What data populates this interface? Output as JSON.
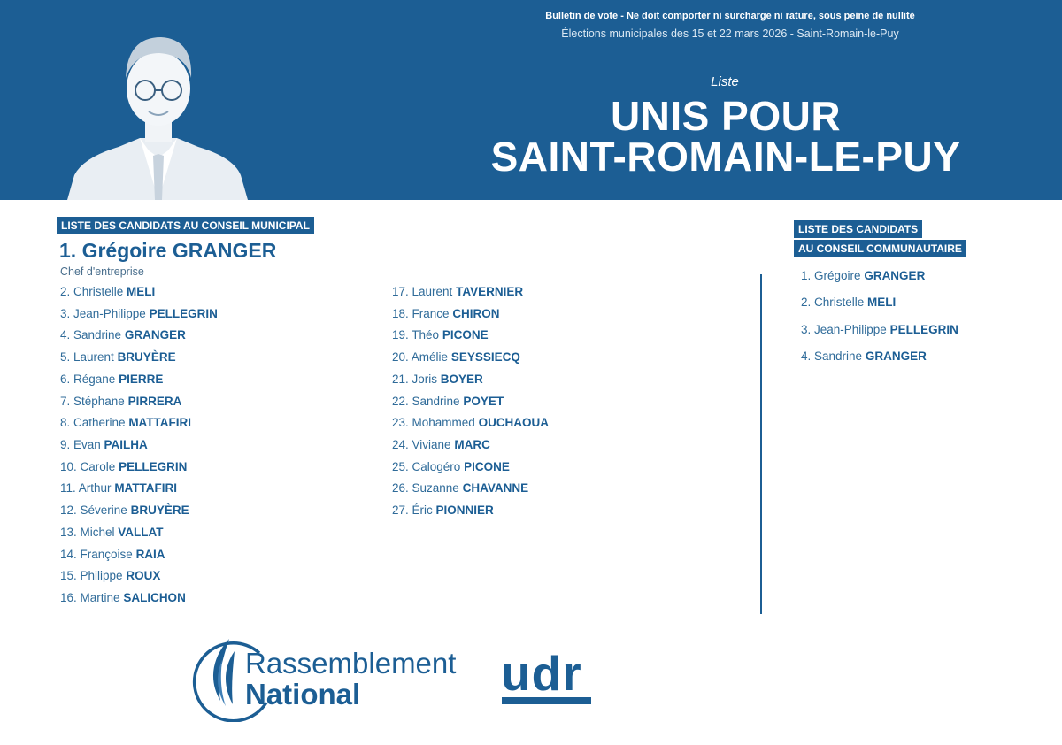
{
  "header": {
    "notice": "Bulletin de vote - Ne doit comporter ni surcharge ni rature, sous peine de nullité",
    "election": "Élections municipales des 15 et 22 mars 2026 - Saint-Romain-le-Puy",
    "liste_label": "Liste",
    "title_line1": "UNIS POUR",
    "title_line2": "SAINT-ROMAIN-LE-PUY"
  },
  "municipal": {
    "section_label": "LISTE DES CANDIDATS AU CONSEIL MUNICIPAL",
    "head": {
      "name": "1. Grégoire GRANGER",
      "role": "Chef d'entreprise"
    },
    "col1": [
      {
        "first": "2. Christelle",
        "last": "MELI"
      },
      {
        "first": "3. Jean-Philippe",
        "last": "PELLEGRIN"
      },
      {
        "first": "4. Sandrine",
        "last": "GRANGER"
      },
      {
        "first": "5. Laurent",
        "last": "BRUYÈRE"
      },
      {
        "first": "6. Régane",
        "last": "PIERRE"
      },
      {
        "first": "7. Stéphane",
        "last": "PIRRERA"
      },
      {
        "first": "8. Catherine",
        "last": "MATTAFIRI"
      },
      {
        "first": "9. Evan",
        "last": "PAILHA"
      },
      {
        "first": "10. Carole",
        "last": "PELLEGRIN"
      },
      {
        "first": "11. Arthur",
        "last": "MATTAFIRI"
      },
      {
        "first": "12. Séverine",
        "last": "BRUYÈRE"
      },
      {
        "first": "13. Michel",
        "last": "VALLAT"
      },
      {
        "first": "14. Françoise",
        "last": "RAIA"
      },
      {
        "first": "15. Philippe",
        "last": "ROUX"
      },
      {
        "first": "16. Martine",
        "last": "SALICHON"
      }
    ],
    "col2": [
      {
        "first": "17. Laurent",
        "last": "TAVERNIER"
      },
      {
        "first": "18. France",
        "last": "CHIRON"
      },
      {
        "first": "19. Théo",
        "last": "PICONE"
      },
      {
        "first": "20. Amélie",
        "last": "SEYSSIECQ"
      },
      {
        "first": "21. Joris",
        "last": "BOYER"
      },
      {
        "first": "22. Sandrine",
        "last": "POYET"
      },
      {
        "first": "23. Mohammed",
        "last": "OUCHAOUA"
      },
      {
        "first": "24. Viviane",
        "last": "MARC"
      },
      {
        "first": "25. Calogéro",
        "last": "PICONE"
      },
      {
        "first": "26. Suzanne",
        "last": "CHAVANNE"
      },
      {
        "first": "27. Éric",
        "last": "PIONNIER"
      }
    ]
  },
  "communautaire": {
    "section_label_line1": "LISTE DES CANDIDATS",
    "section_label_line2": "AU CONSEIL COMMUNAUTAIRE",
    "items": [
      {
        "first": "1. Grégoire",
        "last": "GRANGER"
      },
      {
        "first": "2. Christelle",
        "last": "MELI"
      },
      {
        "first": "3. Jean-Philippe",
        "last": "PELLEGRIN"
      },
      {
        "first": "4. Sandrine",
        "last": "GRANGER"
      }
    ]
  },
  "logos": {
    "rn_line1": "Rassemblement",
    "rn_line2": "National",
    "udr": "udr"
  },
  "colors": {
    "brand": "#1c5e94",
    "background": "#ffffff"
  }
}
